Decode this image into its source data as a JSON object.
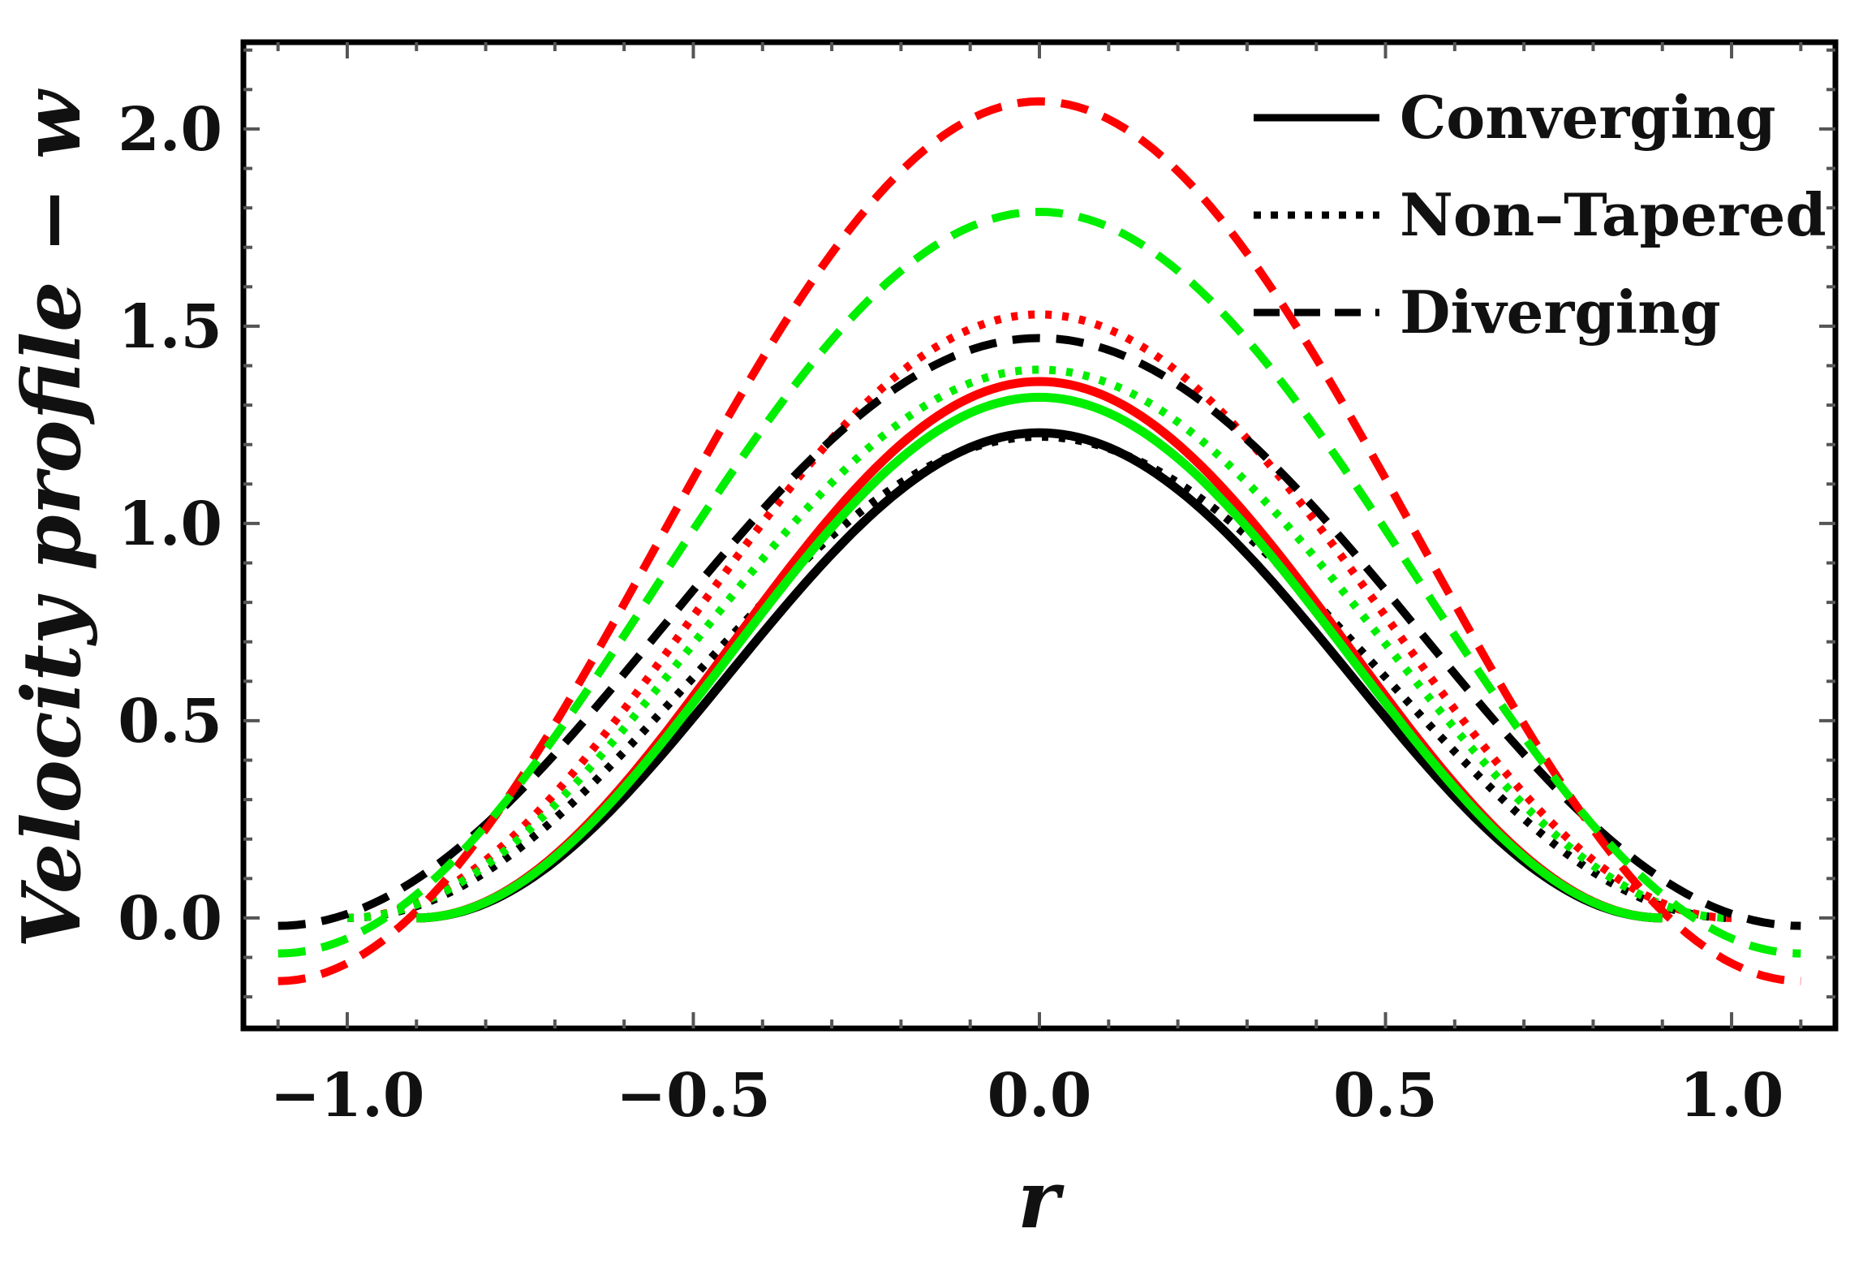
{
  "chart_data": {
    "type": "line",
    "title": "",
    "xlabel": "r",
    "ylabel": "Velocity profile − w",
    "xlim": [
      -1.15,
      1.15
    ],
    "ylim": [
      -0.28,
      2.22
    ],
    "xticks": [
      -1.0,
      -0.5,
      0.0,
      0.5,
      1.0
    ],
    "xtick_labels": [
      "−1.0",
      "−0.5",
      "0.0",
      "0.5",
      "1.0"
    ],
    "yticks": [
      0.0,
      0.5,
      1.0,
      1.5,
      2.0
    ],
    "ytick_labels": [
      "0.0",
      "0.5",
      "1.0",
      "1.5",
      "2.0"
    ],
    "grid": false,
    "legend": {
      "position": "top-right",
      "entries": [
        {
          "label": "Converging",
          "style": "solid"
        },
        {
          "label": "Non–Tapered",
          "style": "dotted"
        },
        {
          "label": "Diverging",
          "style": "dashed"
        }
      ]
    },
    "series": [
      {
        "name": "Converging (black)",
        "color": "#000000",
        "style": "solid",
        "r_min": -0.9,
        "r_max": 0.9,
        "peak": 1.23,
        "edge": 0.0
      },
      {
        "name": "Converging (red)",
        "color": "#ff0000",
        "style": "solid",
        "r_min": -0.9,
        "r_max": 0.9,
        "peak": 1.36,
        "edge": 0.0
      },
      {
        "name": "Converging (green)",
        "color": "#00ee00",
        "style": "solid",
        "r_min": -0.9,
        "r_max": 0.9,
        "peak": 1.32,
        "edge": 0.0
      },
      {
        "name": "Non–Tapered (black)",
        "color": "#000000",
        "style": "dotted",
        "r_min": -1.0,
        "r_max": 1.0,
        "peak": 1.22,
        "edge": 0.0
      },
      {
        "name": "Non–Tapered (red)",
        "color": "#ff0000",
        "style": "dotted",
        "r_min": -1.0,
        "r_max": 1.0,
        "peak": 1.53,
        "edge": 0.0
      },
      {
        "name": "Non–Tapered (green)",
        "color": "#00ee00",
        "style": "dotted",
        "r_min": -1.0,
        "r_max": 1.0,
        "peak": 1.39,
        "edge": 0.0
      },
      {
        "name": "Diverging (black)",
        "color": "#000000",
        "style": "dashed",
        "r_min": -1.1,
        "r_max": 1.1,
        "peak": 1.47,
        "edge": -0.02
      },
      {
        "name": "Diverging (red)",
        "color": "#ff0000",
        "style": "dashed",
        "r_min": -1.1,
        "r_max": 1.1,
        "peak": 2.07,
        "edge": -0.16
      },
      {
        "name": "Diverging (green)",
        "color": "#00ee00",
        "style": "dashed",
        "r_min": -1.1,
        "r_max": 1.1,
        "peak": 1.79,
        "edge": -0.09
      }
    ]
  }
}
